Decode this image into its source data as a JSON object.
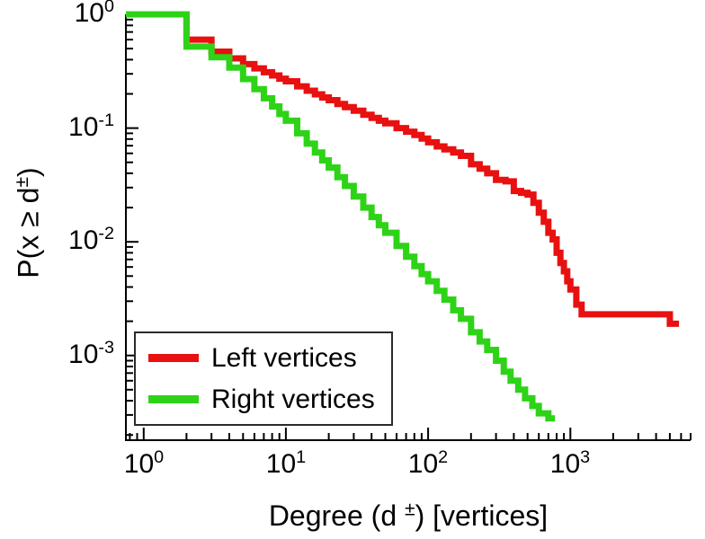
{
  "figure": {
    "background": "#ffffff",
    "axes_color": "#000000"
  },
  "chart_data": {
    "type": "line",
    "subtype": "ccdf-staircase",
    "x_scale": "log",
    "y_scale": "log",
    "grid": false,
    "title": "",
    "xlabel_prefix": "Degree (d ",
    "xlabel_sup": "±",
    "xlabel_suffix": ") [vertices]",
    "ylabel_prefix": "P(x ≥ d",
    "ylabel_sup": "±",
    "ylabel_suffix": ")",
    "xlim": [
      0.75,
      7000
    ],
    "ylim": [
      0.00018,
      1
    ],
    "x_ticks": [
      {
        "value": 1,
        "base": "10",
        "exp": "0"
      },
      {
        "value": 10,
        "base": "10",
        "exp": "1"
      },
      {
        "value": 100,
        "base": "10",
        "exp": "2"
      },
      {
        "value": 1000,
        "base": "10",
        "exp": "3"
      }
    ],
    "y_ticks": [
      {
        "value": 1,
        "base": "10",
        "exp": "0"
      },
      {
        "value": 0.1,
        "base": "10",
        "exp": "-1"
      },
      {
        "value": 0.01,
        "base": "10",
        "exp": "-2"
      },
      {
        "value": 0.001,
        "base": "10",
        "exp": "-3"
      }
    ],
    "line_width": 7,
    "legend": {
      "position": "bottom-left",
      "border": true
    },
    "series": [
      {
        "name": "Left vertices",
        "color": "#e81010",
        "points": [
          [
            1,
            1.0
          ],
          [
            2,
            0.6
          ],
          [
            3,
            0.47
          ],
          [
            4,
            0.41
          ],
          [
            5,
            0.365
          ],
          [
            6,
            0.335
          ],
          [
            7,
            0.31
          ],
          [
            8,
            0.29
          ],
          [
            9,
            0.272
          ],
          [
            10,
            0.258
          ],
          [
            12,
            0.233
          ],
          [
            14,
            0.213
          ],
          [
            16,
            0.198
          ],
          [
            18,
            0.186
          ],
          [
            20,
            0.176
          ],
          [
            23,
            0.163
          ],
          [
            26,
            0.153
          ],
          [
            30,
            0.142
          ],
          [
            35,
            0.131
          ],
          [
            40,
            0.123
          ],
          [
            45,
            0.116
          ],
          [
            50,
            0.11
          ],
          [
            60,
            0.1
          ],
          [
            70,
            0.093
          ],
          [
            80,
            0.087
          ],
          [
            90,
            0.081
          ],
          [
            100,
            0.075
          ],
          [
            115,
            0.069
          ],
          [
            130,
            0.065
          ],
          [
            150,
            0.061
          ],
          [
            170,
            0.057
          ],
          [
            200,
            0.048
          ],
          [
            230,
            0.044
          ],
          [
            260,
            0.04
          ],
          [
            300,
            0.035
          ],
          [
            350,
            0.034
          ],
          [
            400,
            0.028
          ],
          [
            450,
            0.027
          ],
          [
            500,
            0.026
          ],
          [
            550,
            0.022
          ],
          [
            600,
            0.018
          ],
          [
            650,
            0.015
          ],
          [
            700,
            0.012
          ],
          [
            750,
            0.0105
          ],
          [
            800,
            0.008
          ],
          [
            850,
            0.0065
          ],
          [
            900,
            0.0055
          ],
          [
            950,
            0.0045
          ],
          [
            1000,
            0.0038
          ],
          [
            1100,
            0.0028
          ],
          [
            1200,
            0.0023
          ],
          [
            5000,
            0.0019
          ],
          [
            5800,
            0.0019
          ]
        ]
      },
      {
        "name": "Right vertices",
        "color": "#2ed317",
        "points": [
          [
            1,
            1.0
          ],
          [
            2,
            0.52
          ],
          [
            3,
            0.42
          ],
          [
            4,
            0.34
          ],
          [
            5,
            0.27
          ],
          [
            6,
            0.22
          ],
          [
            7,
            0.183
          ],
          [
            8,
            0.155
          ],
          [
            9,
            0.133
          ],
          [
            10,
            0.116
          ],
          [
            12,
            0.09
          ],
          [
            14,
            0.073
          ],
          [
            16,
            0.061
          ],
          [
            18,
            0.052
          ],
          [
            20,
            0.045
          ],
          [
            23,
            0.037
          ],
          [
            26,
            0.031
          ],
          [
            30,
            0.025
          ],
          [
            35,
            0.02
          ],
          [
            40,
            0.0165
          ],
          [
            45,
            0.014
          ],
          [
            50,
            0.012
          ],
          [
            60,
            0.0092
          ],
          [
            70,
            0.0074
          ],
          [
            80,
            0.0061
          ],
          [
            90,
            0.0052
          ],
          [
            100,
            0.0045
          ],
          [
            115,
            0.0037
          ],
          [
            130,
            0.0031
          ],
          [
            150,
            0.0025
          ],
          [
            170,
            0.0021
          ],
          [
            200,
            0.0016
          ],
          [
            230,
            0.00133
          ],
          [
            260,
            0.00112
          ],
          [
            300,
            0.0009
          ],
          [
            340,
            0.00072
          ],
          [
            380,
            0.0006
          ],
          [
            430,
            0.0005
          ],
          [
            480,
            0.00042
          ],
          [
            540,
            0.00036
          ],
          [
            600,
            0.00031
          ],
          [
            700,
            0.00028
          ],
          [
            780,
            0.00028
          ]
        ]
      }
    ]
  }
}
